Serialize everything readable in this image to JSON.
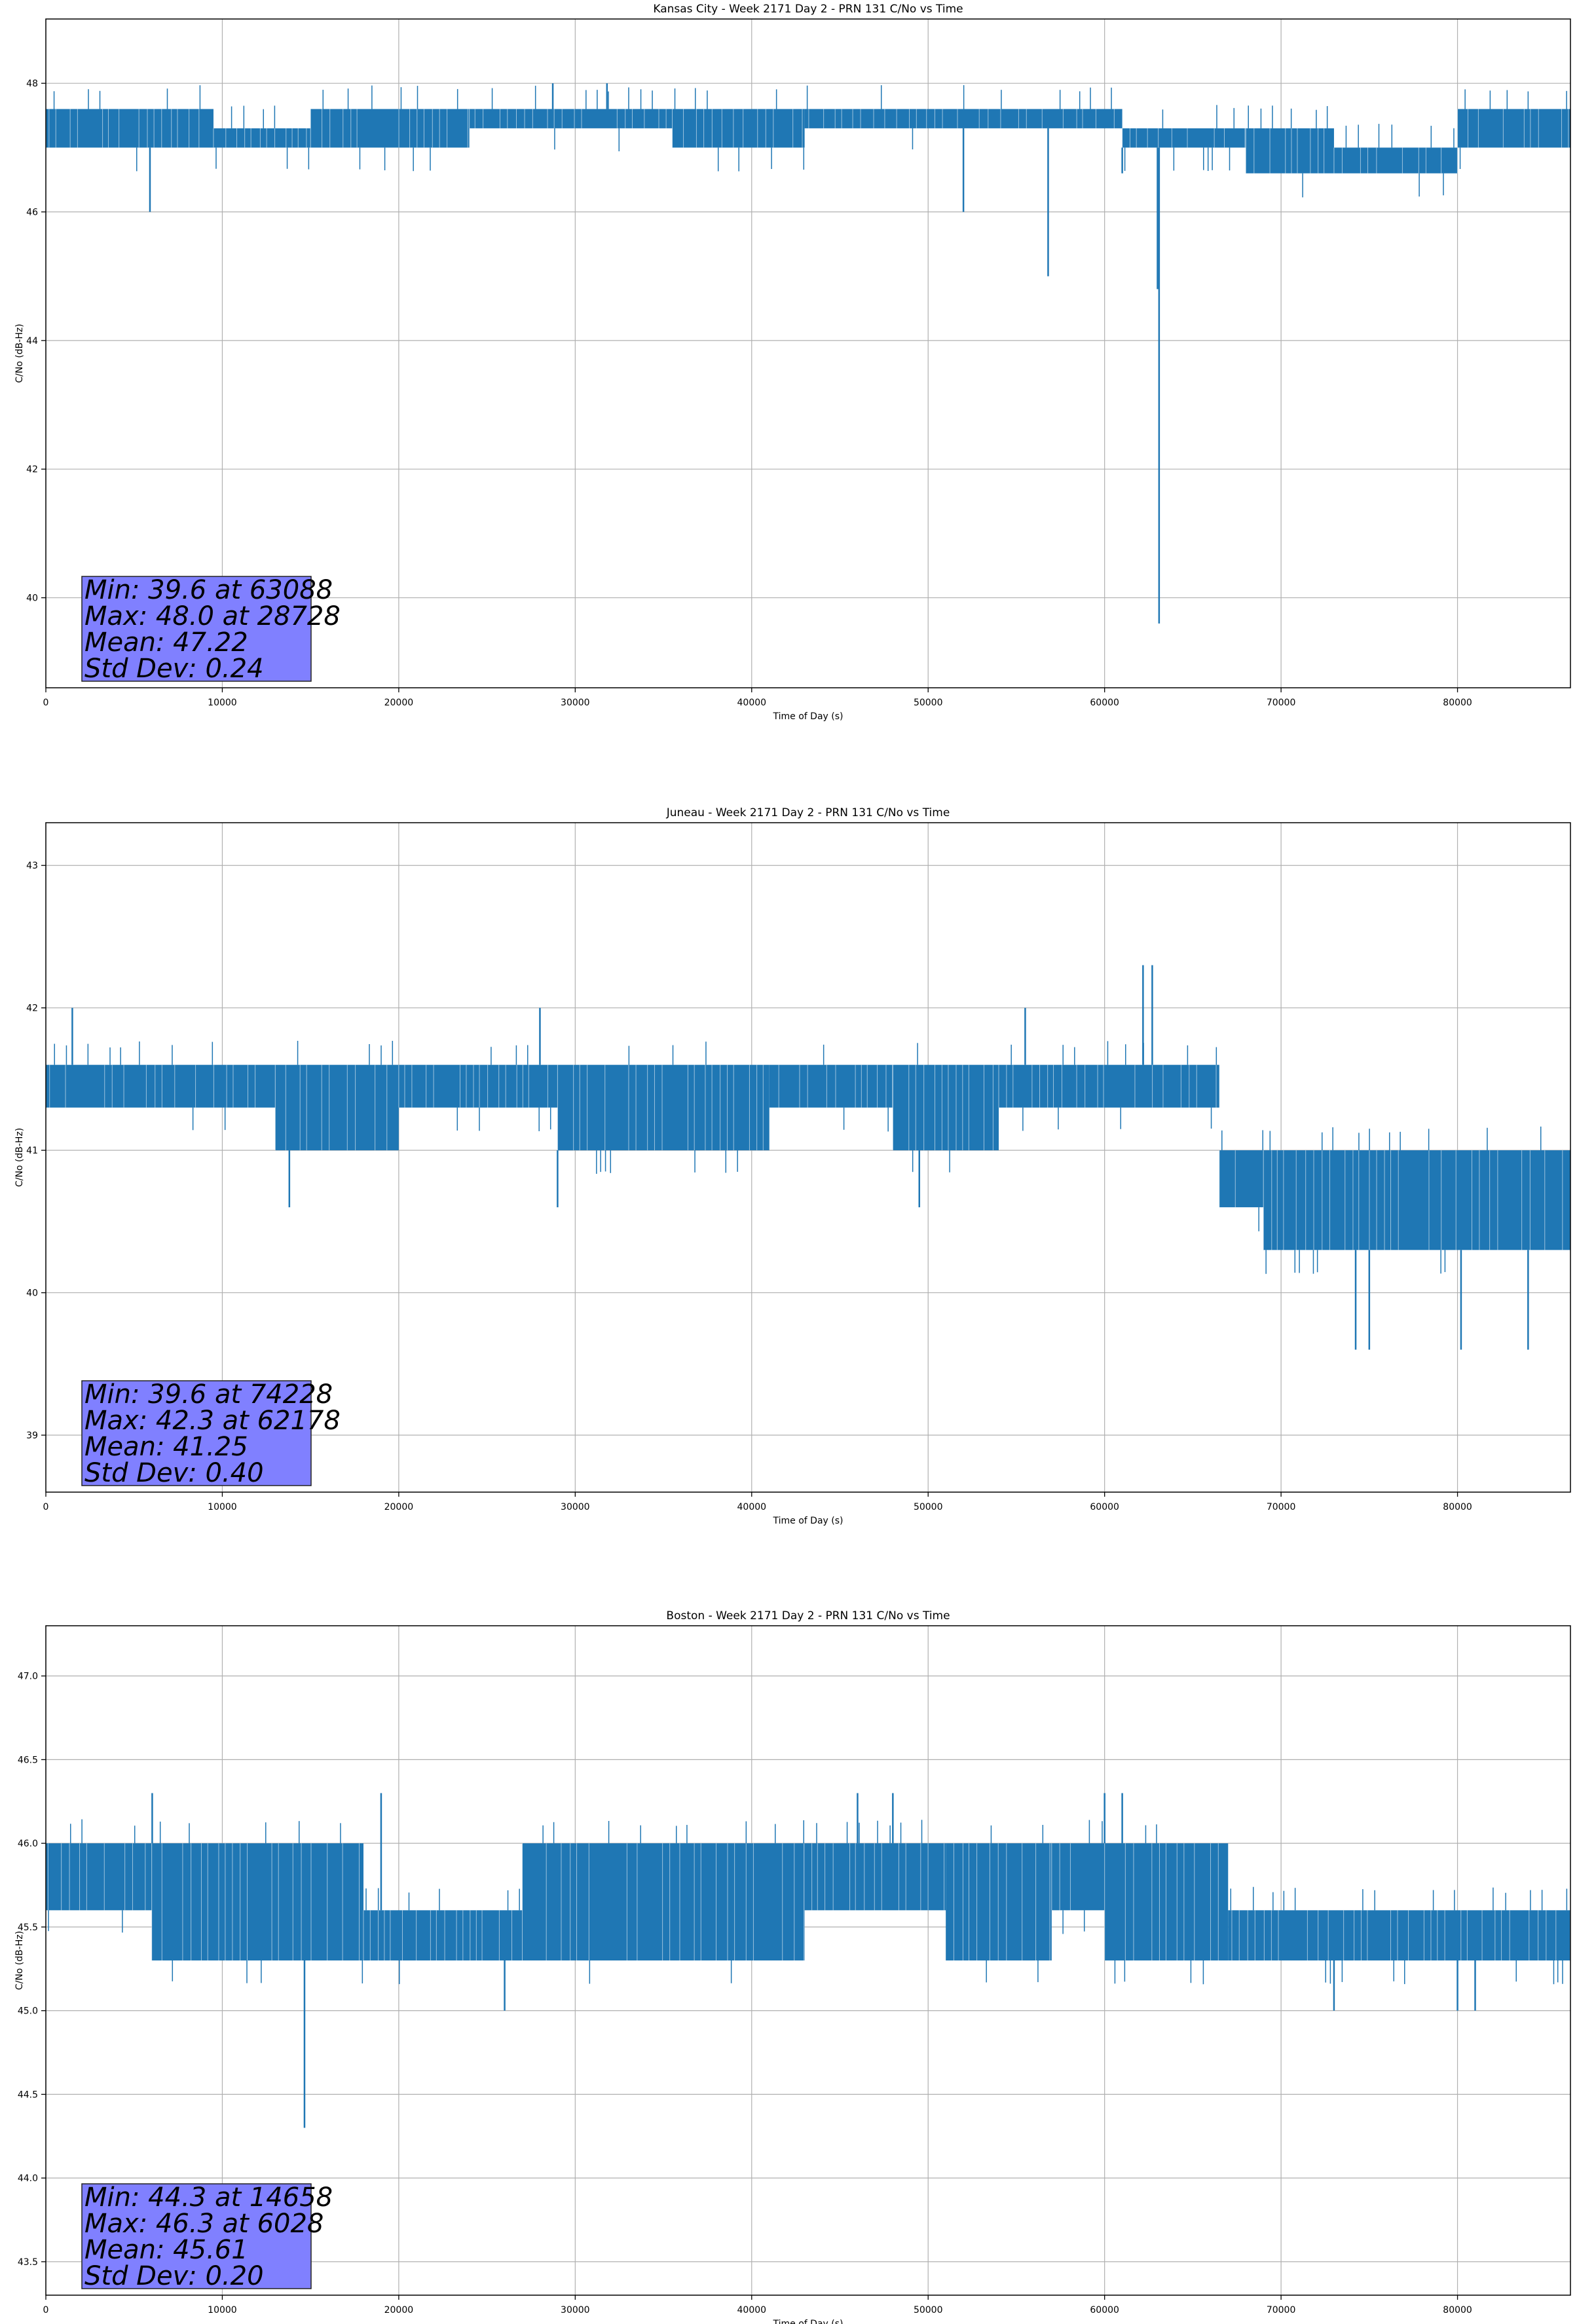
{
  "chart_data": [
    {
      "type": "line",
      "title": "Kansas City - Week 2171 Day 2 - PRN 131 C/No vs Time",
      "xlabel": "Time of Day (s)",
      "ylabel": "C/No (dB-Hz)",
      "xlim": [
        0,
        86400
      ],
      "ylim": [
        38.6,
        49.0
      ],
      "xticks": [
        0,
        10000,
        20000,
        30000,
        40000,
        50000,
        60000,
        70000,
        80000
      ],
      "yticks": [
        40,
        42,
        44,
        46,
        48
      ],
      "ytick_decimals": 0,
      "grid": true,
      "series": [
        {
          "color": "#1f77b4",
          "segments": [
            {
              "x": [
                0,
                9500
              ],
              "low": 47.0,
              "high": 47.6
            },
            {
              "x": [
                9500,
                15000
              ],
              "low": 47.0,
              "high": 47.3
            },
            {
              "x": [
                15000,
                24000
              ],
              "low": 47.0,
              "high": 47.6
            },
            {
              "x": [
                24000,
                35500
              ],
              "low": 47.3,
              "high": 47.6
            },
            {
              "x": [
                35500,
                43000
              ],
              "low": 47.0,
              "high": 47.6
            },
            {
              "x": [
                43000,
                61000
              ],
              "low": 47.3,
              "high": 47.6
            },
            {
              "x": [
                61000,
                68000
              ],
              "low": 47.0,
              "high": 47.3
            },
            {
              "x": [
                68000,
                73000
              ],
              "low": 46.6,
              "high": 47.3
            },
            {
              "x": [
                73000,
                80000
              ],
              "low": 46.6,
              "high": 47.0
            },
            {
              "x": [
                80000,
                86400
              ],
              "low": 47.0,
              "high": 47.6
            }
          ],
          "spikes": [
            {
              "x": 5900,
              "y": 46.0
            },
            {
              "x": 28728,
              "y": 48.0
            },
            {
              "x": 31800,
              "y": 48.0
            },
            {
              "x": 52000,
              "y": 46.0
            },
            {
              "x": 56800,
              "y": 45.0
            },
            {
              "x": 61000,
              "y": 46.6
            },
            {
              "x": 63088,
              "y": 39.6
            },
            {
              "x": 63000,
              "y": 44.8
            }
          ]
        }
      ],
      "stats_box": {
        "min": "Min: 39.6 at 63088",
        "max": "Max: 48.0 at 28728",
        "mean": "Mean: 47.22",
        "std": "Std Dev: 0.24"
      }
    },
    {
      "type": "line",
      "title": "Juneau - Week 2171 Day 2 - PRN 131 C/No vs Time",
      "xlabel": "Time of Day (s)",
      "ylabel": "C/No (dB-Hz)",
      "xlim": [
        0,
        86400
      ],
      "ylim": [
        38.6,
        43.3
      ],
      "xticks": [
        0,
        10000,
        20000,
        30000,
        40000,
        50000,
        60000,
        70000,
        80000
      ],
      "yticks": [
        39,
        40,
        41,
        42,
        43
      ],
      "ytick_decimals": 0,
      "grid": true,
      "series": [
        {
          "color": "#1f77b4",
          "segments": [
            {
              "x": [
                0,
                13000
              ],
              "low": 41.3,
              "high": 41.6
            },
            {
              "x": [
                13000,
                20000
              ],
              "low": 41.0,
              "high": 41.6
            },
            {
              "x": [
                20000,
                29000
              ],
              "low": 41.3,
              "high": 41.6
            },
            {
              "x": [
                29000,
                41000
              ],
              "low": 41.0,
              "high": 41.6
            },
            {
              "x": [
                41000,
                48000
              ],
              "low": 41.3,
              "high": 41.6
            },
            {
              "x": [
                48000,
                54000
              ],
              "low": 41.0,
              "high": 41.6
            },
            {
              "x": [
                54000,
                66500
              ],
              "low": 41.3,
              "high": 41.6
            },
            {
              "x": [
                66500,
                69000
              ],
              "low": 40.6,
              "high": 41.0
            },
            {
              "x": [
                69000,
                86400
              ],
              "low": 40.3,
              "high": 41.0
            }
          ],
          "spikes": [
            {
              "x": 1500,
              "y": 42.0
            },
            {
              "x": 13800,
              "y": 40.6
            },
            {
              "x": 28000,
              "y": 42.0
            },
            {
              "x": 29000,
              "y": 40.6
            },
            {
              "x": 49500,
              "y": 40.6
            },
            {
              "x": 55500,
              "y": 42.0
            },
            {
              "x": 62178,
              "y": 42.3
            },
            {
              "x": 62700,
              "y": 42.3
            },
            {
              "x": 74228,
              "y": 39.6
            },
            {
              "x": 75000,
              "y": 39.6
            },
            {
              "x": 80200,
              "y": 39.6
            },
            {
              "x": 84000,
              "y": 39.6
            }
          ]
        }
      ],
      "stats_box": {
        "min": "Min: 39.6 at 74228",
        "max": "Max: 42.3 at 62178",
        "mean": "Mean: 41.25",
        "std": "Std Dev: 0.40"
      }
    },
    {
      "type": "line",
      "title": "Boston - Week 2171 Day 2 - PRN 131 C/No vs Time",
      "xlabel": "Time of Day (s)",
      "ylabel": "C/No (dB-Hz)",
      "xlim": [
        0,
        86400
      ],
      "ylim": [
        43.3,
        47.3
      ],
      "xticks": [
        0,
        10000,
        20000,
        30000,
        40000,
        50000,
        60000,
        70000,
        80000
      ],
      "yticks": [
        43.5,
        44.0,
        44.5,
        45.0,
        45.5,
        46.0,
        46.5,
        47.0
      ],
      "ytick_decimals": 1,
      "grid": true,
      "series": [
        {
          "color": "#1f77b4",
          "segments": [
            {
              "x": [
                0,
                6000
              ],
              "low": 45.6,
              "high": 46.0
            },
            {
              "x": [
                6000,
                18000
              ],
              "low": 45.3,
              "high": 46.0
            },
            {
              "x": [
                18000,
                27000
              ],
              "low": 45.3,
              "high": 45.6
            },
            {
              "x": [
                27000,
                43000
              ],
              "low": 45.3,
              "high": 46.0
            },
            {
              "x": [
                43000,
                51000
              ],
              "low": 45.6,
              "high": 46.0
            },
            {
              "x": [
                51000,
                57000
              ],
              "low": 45.3,
              "high": 46.0
            },
            {
              "x": [
                57000,
                60000
              ],
              "low": 45.6,
              "high": 46.0
            },
            {
              "x": [
                60000,
                67000
              ],
              "low": 45.3,
              "high": 46.0
            },
            {
              "x": [
                67000,
                86400
              ],
              "low": 45.3,
              "high": 45.6
            }
          ],
          "spikes": [
            {
              "x": 6028,
              "y": 46.3
            },
            {
              "x": 14658,
              "y": 44.3
            },
            {
              "x": 19000,
              "y": 46.3
            },
            {
              "x": 26000,
              "y": 45.0
            },
            {
              "x": 46000,
              "y": 46.3
            },
            {
              "x": 48000,
              "y": 46.3
            },
            {
              "x": 60000,
              "y": 46.3
            },
            {
              "x": 61000,
              "y": 46.3
            },
            {
              "x": 73000,
              "y": 45.0
            },
            {
              "x": 80000,
              "y": 45.0
            },
            {
              "x": 81000,
              "y": 45.0
            }
          ]
        }
      ],
      "stats_box": {
        "min": "Min: 44.3 at 14658",
        "max": "Max: 46.3 at 6028",
        "mean": "Mean: 45.61",
        "std": "Std Dev: 0.20"
      }
    }
  ]
}
